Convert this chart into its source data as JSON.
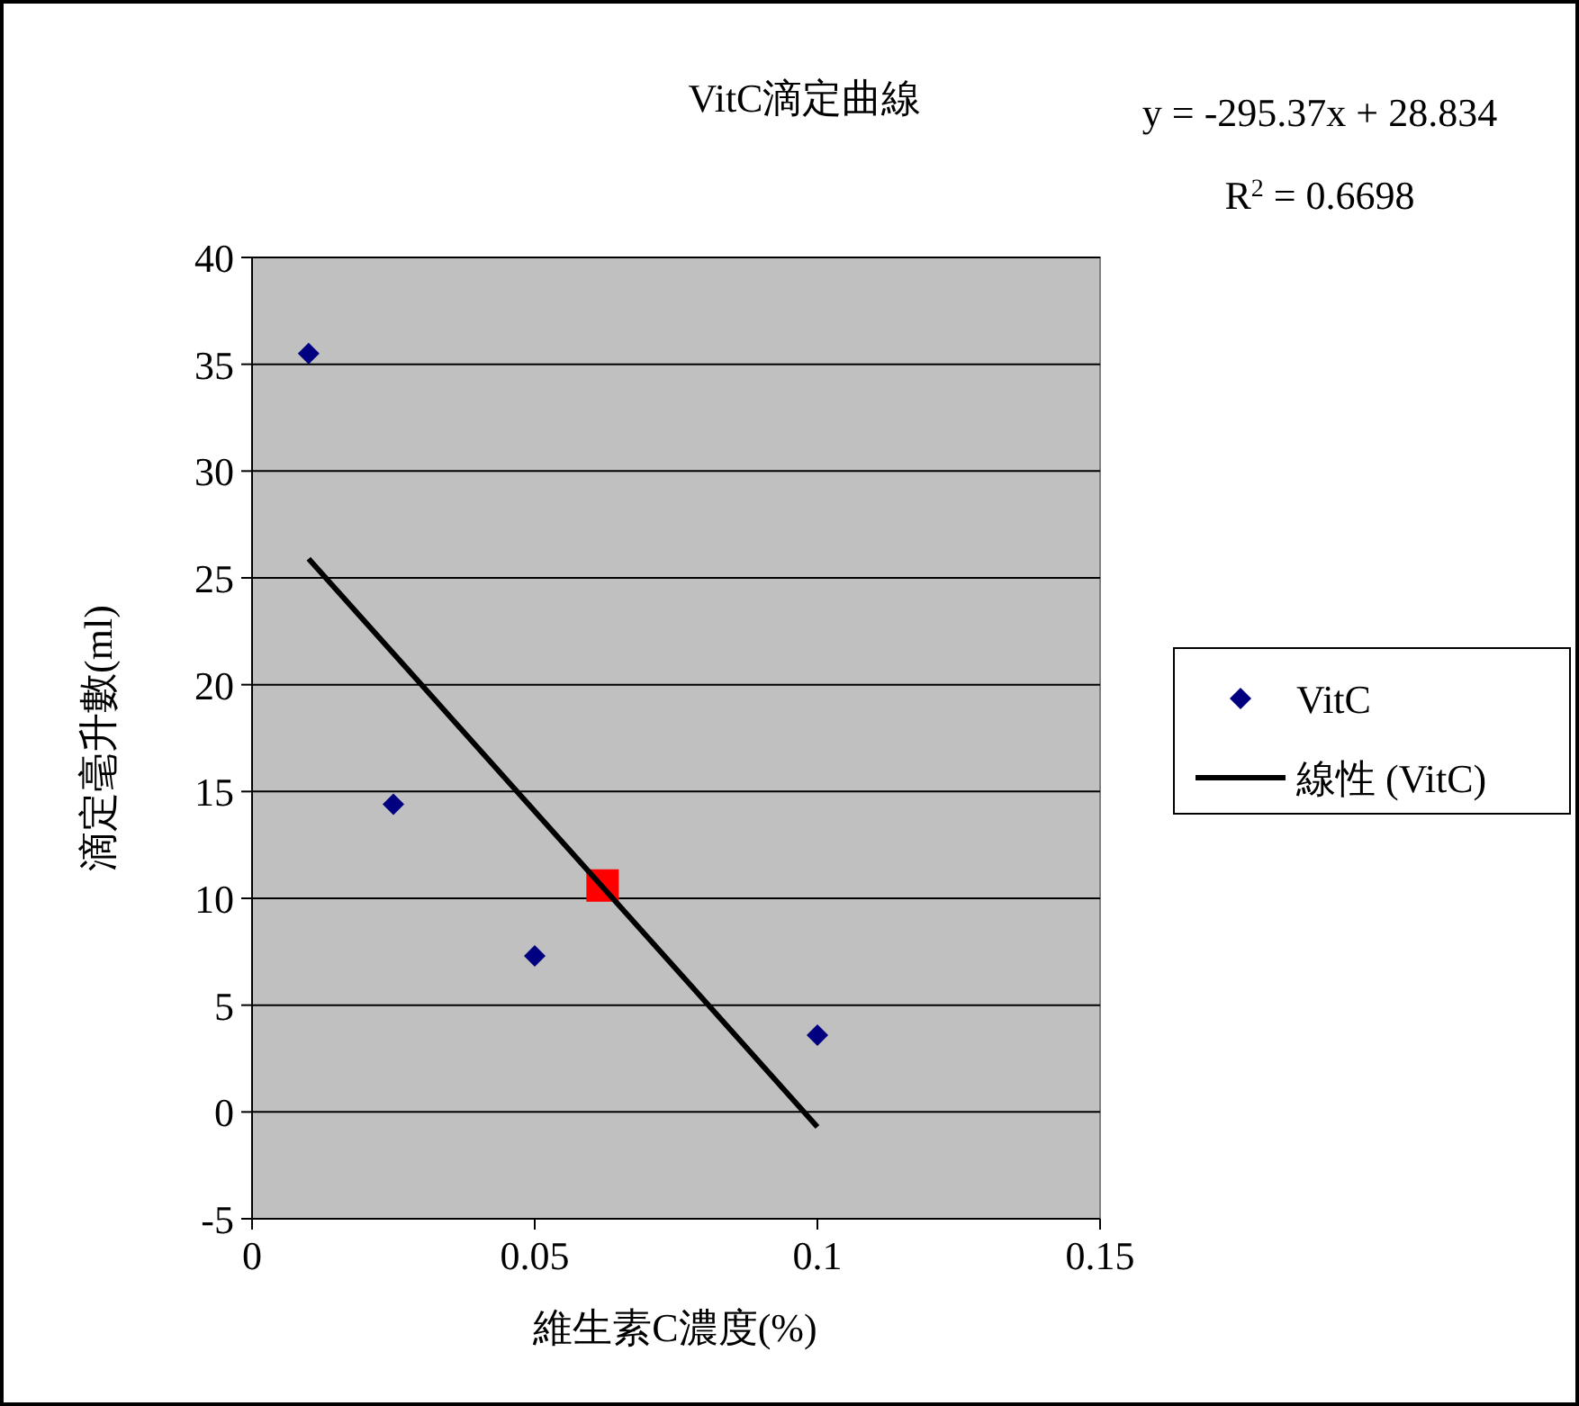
{
  "chart_data": {
    "type": "scatter",
    "title": "VitC滴定曲線",
    "xlabel": "維生素C濃度(%)",
    "ylabel": "滴定毫升數(ml)",
    "annotations": [
      "y = -295.37x + 28.834",
      "R$^{2}$ = 0.6698"
    ],
    "xlim": [
      0,
      0.15
    ],
    "xticks": [
      0,
      0.05,
      0.1,
      0.15
    ],
    "ylim": [
      -5,
      40
    ],
    "yticks": [
      -5,
      0,
      5,
      10,
      15,
      20,
      25,
      30,
      35,
      40
    ],
    "grid": "y",
    "legend": "right",
    "series": [
      {
        "name": "VitC",
        "color": "#000080",
        "marker": "diamond",
        "x": [
          0.01,
          0.025,
          0.05,
          0.1
        ],
        "values": [
          35.5,
          14.4,
          7.3,
          3.6
        ]
      },
      {
        "color": "#ff0000",
        "marker": "square",
        "x": [
          0.062
        ],
        "values": [
          10.6
        ]
      },
      {
        "name": "線性 (VitC)",
        "type": "line",
        "color": "#000000",
        "marker": "none",
        "line_style": "solid",
        "x": [
          0.01,
          0.1
        ],
        "values": [
          25.9,
          -0.7
        ]
      }
    ]
  }
}
